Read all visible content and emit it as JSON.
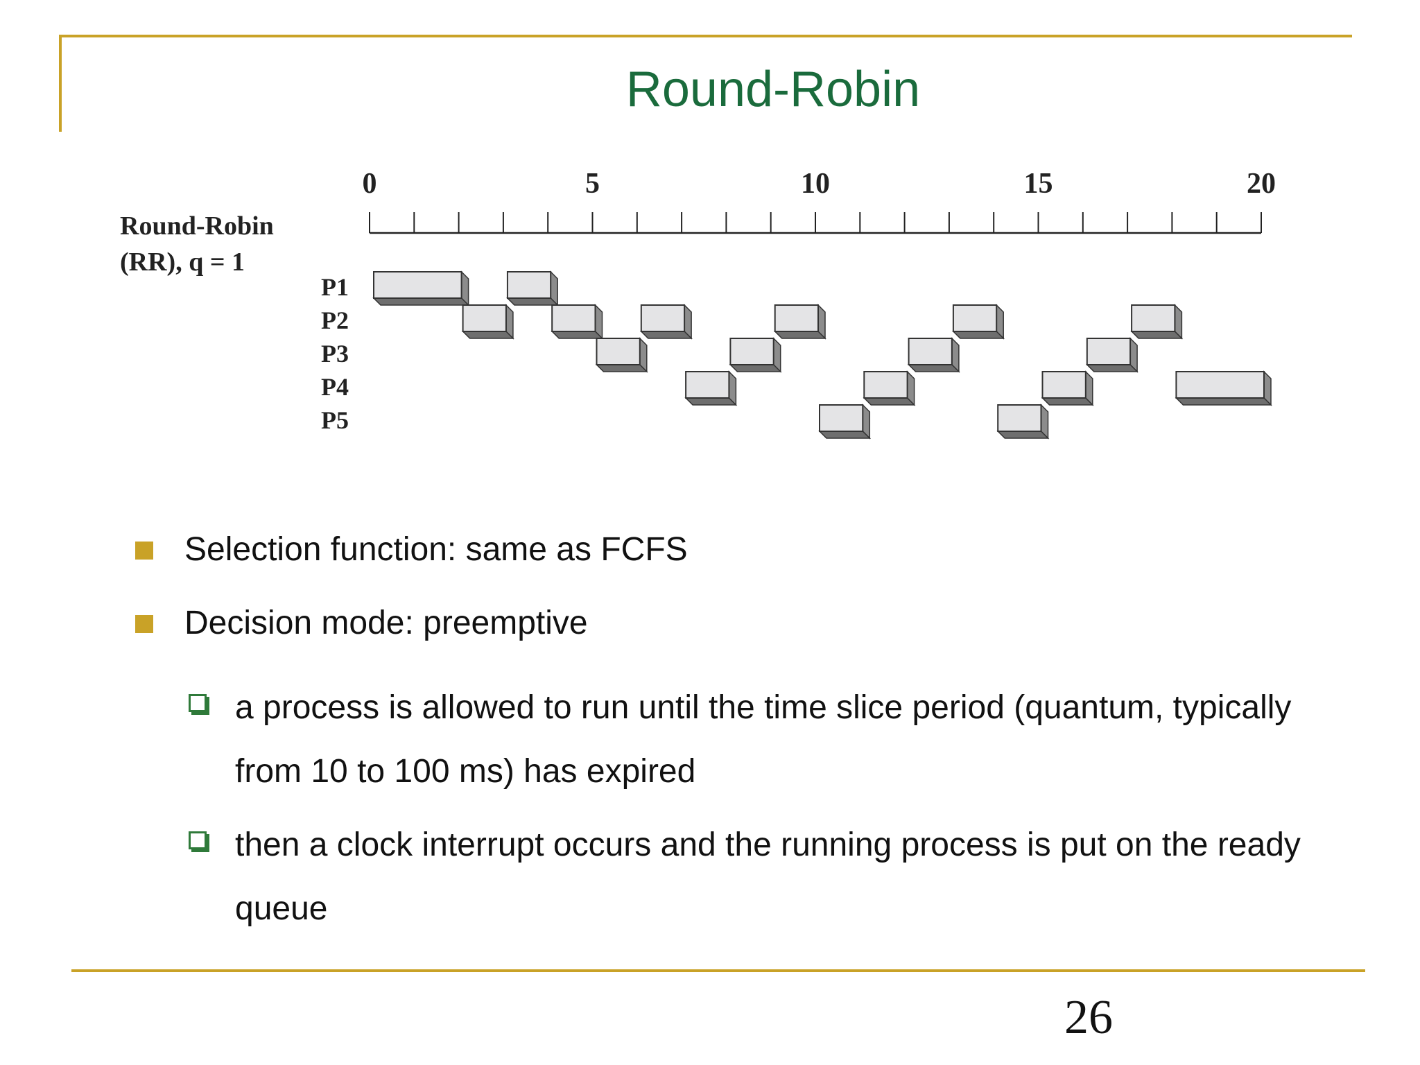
{
  "slide": {
    "title": "Round-Robin",
    "page_number": "26",
    "accent_color": "#c9a227",
    "title_color": "#1a6b3c",
    "subbullet_color": "#2f7a3a"
  },
  "chart_data": {
    "type": "gantt",
    "label_line1": "Round-Robin",
    "label_line2": "(RR), q = 1",
    "axis": {
      "min": 0,
      "max": 20,
      "major_ticks": [
        0,
        5,
        10,
        15,
        20
      ],
      "tick_labels": [
        "0",
        "5",
        "10",
        "15",
        "20"
      ]
    },
    "processes": [
      "P1",
      "P2",
      "P3",
      "P4",
      "P5"
    ],
    "segments": [
      {
        "process": "P1",
        "start": 0,
        "end": 2
      },
      {
        "process": "P2",
        "start": 2,
        "end": 3
      },
      {
        "process": "P1",
        "start": 3,
        "end": 4
      },
      {
        "process": "P2",
        "start": 4,
        "end": 5
      },
      {
        "process": "P3",
        "start": 5,
        "end": 6
      },
      {
        "process": "P2",
        "start": 6,
        "end": 7
      },
      {
        "process": "P4",
        "start": 7,
        "end": 8
      },
      {
        "process": "P3",
        "start": 8,
        "end": 9
      },
      {
        "process": "P2",
        "start": 9,
        "end": 10
      },
      {
        "process": "P5",
        "start": 10,
        "end": 11
      },
      {
        "process": "P4",
        "start": 11,
        "end": 12
      },
      {
        "process": "P3",
        "start": 12,
        "end": 13
      },
      {
        "process": "P2",
        "start": 13,
        "end": 14
      },
      {
        "process": "P5",
        "start": 14,
        "end": 15
      },
      {
        "process": "P4",
        "start": 15,
        "end": 16
      },
      {
        "process": "P3",
        "start": 16,
        "end": 17
      },
      {
        "process": "P2",
        "start": 17,
        "end": 18
      },
      {
        "process": "P4",
        "start": 18,
        "end": 20
      }
    ]
  },
  "bullets": [
    {
      "text": "Selection function: same as FCFS"
    },
    {
      "text": "Decision mode: preemptive",
      "sub": [
        "a process is allowed to run until the time slice period (quantum, typically from 10 to 100 ms) has expired",
        "then a clock interrupt occurs and the running process is put on the ready queue"
      ]
    }
  ]
}
